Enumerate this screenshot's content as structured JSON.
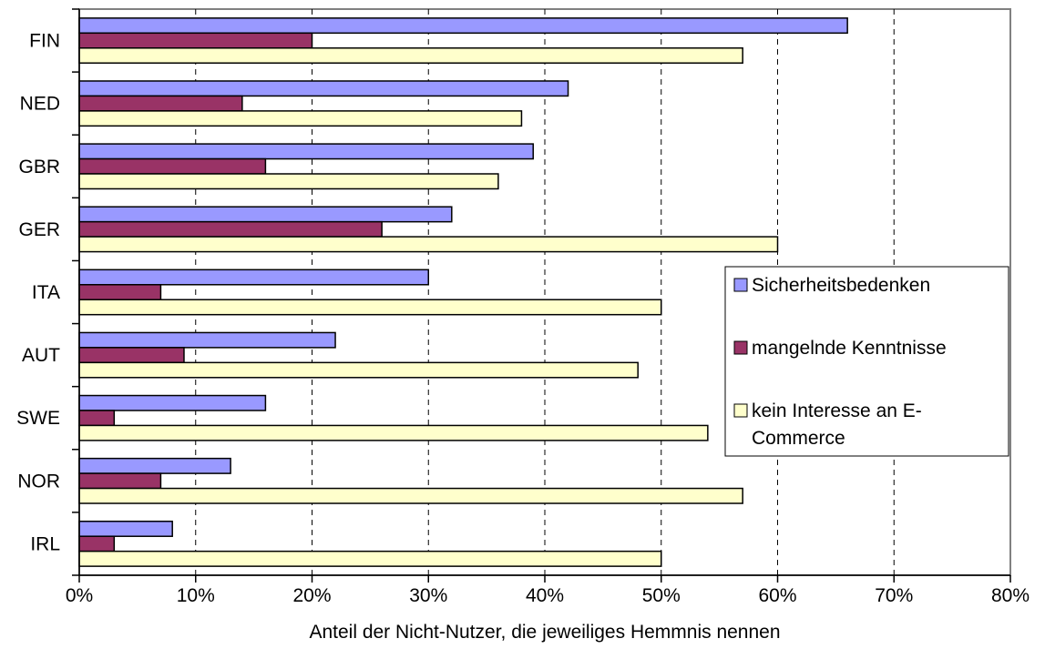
{
  "chart_data": {
    "type": "bar",
    "orientation": "horizontal",
    "title": "",
    "xlabel": "Anteil der Nicht-Nutzer, die jeweiliges Hemmnis nennen",
    "ylabel": "",
    "xlim": [
      0,
      0.8
    ],
    "x_ticks": [
      0,
      0.1,
      0.2,
      0.3,
      0.4,
      0.5,
      0.6,
      0.7,
      0.8
    ],
    "x_tick_labels": [
      "0%",
      "10%",
      "20%",
      "30%",
      "40%",
      "50%",
      "60%",
      "70%",
      "80%"
    ],
    "grid": "vertical-dashed",
    "legend_position": "right",
    "categories": [
      "FIN",
      "NED",
      "GBR",
      "GER",
      "ITA",
      "AUT",
      "SWE",
      "NOR",
      "IRL"
    ],
    "series": [
      {
        "name": "Sicherheitsbedenken",
        "color": "#9999FF",
        "values": [
          0.66,
          0.42,
          0.39,
          0.32,
          0.3,
          0.22,
          0.16,
          0.13,
          0.08
        ]
      },
      {
        "name": "mangelnde Kenntnisse",
        "color": "#993366",
        "values": [
          0.2,
          0.14,
          0.16,
          0.26,
          0.07,
          0.09,
          0.03,
          0.07,
          0.03
        ]
      },
      {
        "name": "kein Interesse an E-Commerce",
        "legend_lines": [
          "kein Interesse an E-",
          "Commerce"
        ],
        "color": "#FFFFCC",
        "values": [
          0.57,
          0.38,
          0.36,
          0.6,
          0.5,
          0.48,
          0.54,
          0.57,
          0.5
        ]
      }
    ]
  }
}
